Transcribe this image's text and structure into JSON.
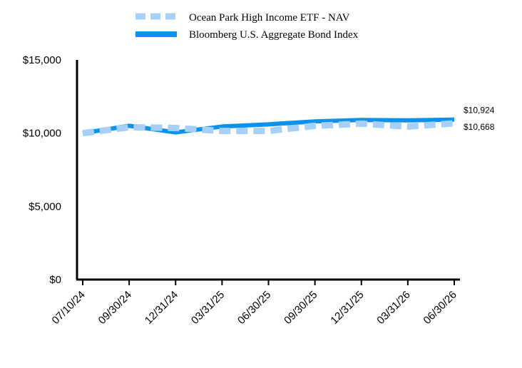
{
  "chart_data": {
    "type": "line",
    "x_labels": [
      "07/10/24",
      "09/30/24",
      "12/31/24",
      "03/31/25",
      "06/30/25",
      "09/30/25",
      "12/31/25",
      "03/31/26",
      "06/30/26"
    ],
    "series": [
      {
        "name": "Ocean Park High Income ETF - NAV",
        "color": "#a6d0f7",
        "style": "dashed",
        "values": [
          10000,
          10400,
          10350,
          10150,
          10150,
          10500,
          10650,
          10450,
          10668
        ]
      },
      {
        "name": "Bloomberg U.S. Aggregate Bond Index",
        "color": "#0d91ea",
        "style": "solid",
        "values": [
          10000,
          10500,
          10050,
          10450,
          10600,
          10800,
          10900,
          10870,
          10924
        ]
      }
    ],
    "end_labels": [
      "$10,668",
      "$10,924"
    ],
    "y_ticks": [
      "$0",
      "$5,000",
      "$10,000",
      "$15,000"
    ],
    "y_tick_values": [
      0,
      5000,
      10000,
      15000
    ],
    "ylim": [
      0,
      15000
    ],
    "grid": false,
    "legend_position": "top"
  }
}
